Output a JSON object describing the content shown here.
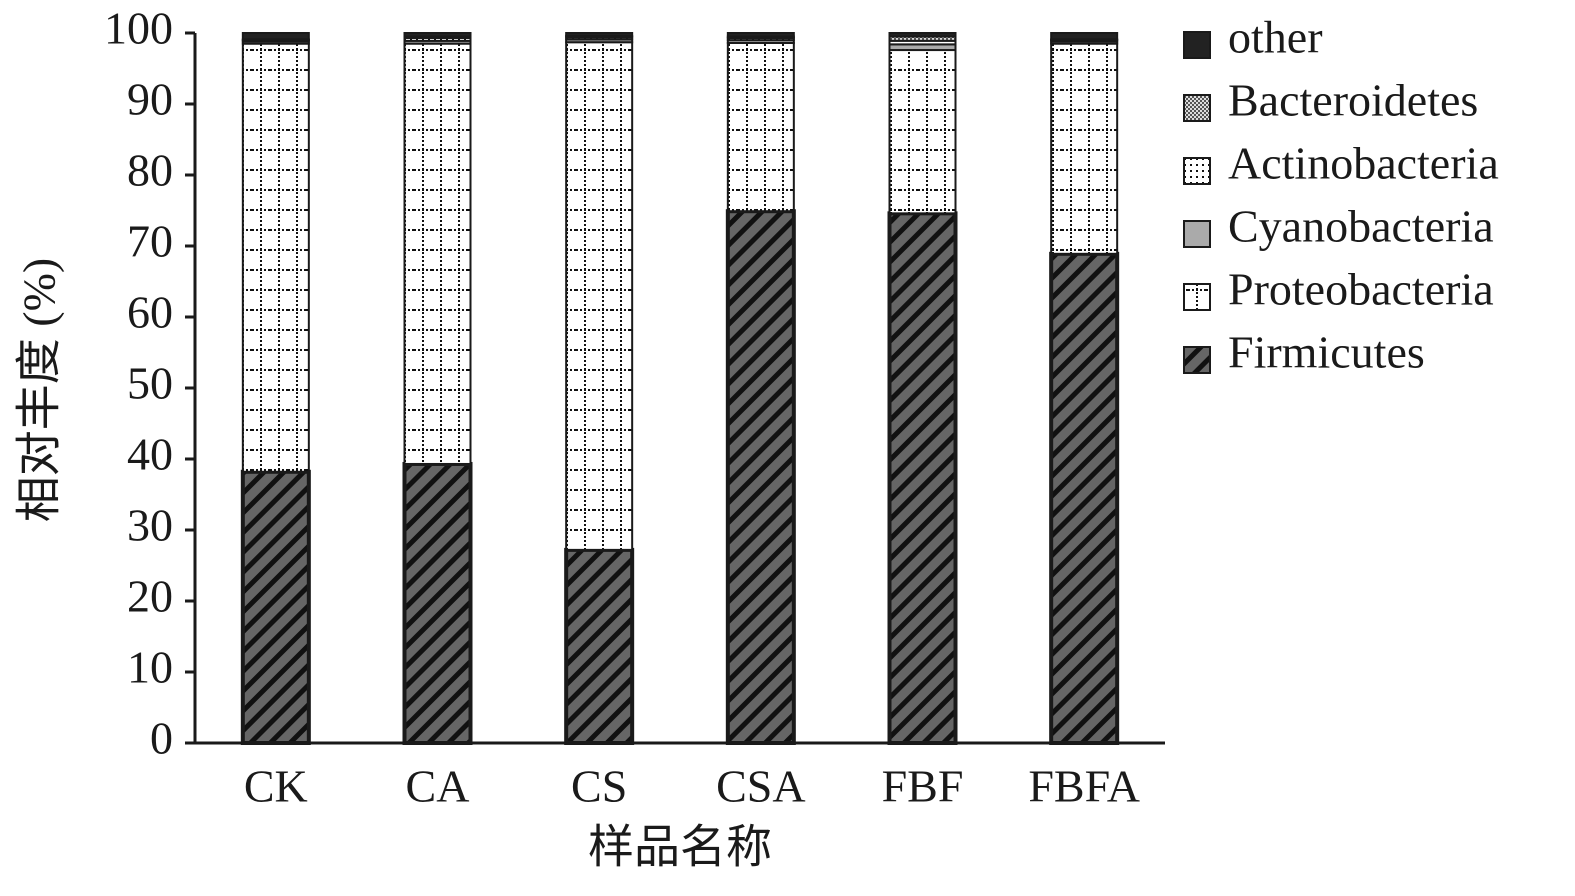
{
  "chart_data": {
    "type": "stacked-bar",
    "x_label": "样品名称",
    "y_label": "相对丰度 (%)",
    "categories": [
      "CK",
      "CA",
      "CS",
      "CSA",
      "FBF",
      "FBFA"
    ],
    "series": [
      {
        "name": "Firmicutes",
        "color": "#666666",
        "values": [
          38.2,
          39.3,
          27.2,
          74.9,
          74.6,
          68.9
        ]
      },
      {
        "name": "Proteobacteria",
        "color": "#ffffff",
        "values": [
          60.3,
          59.2,
          71.5,
          23.7,
          23.0,
          29.6
        ]
      },
      {
        "name": "Cyanobacteria",
        "color": "#aaaaaa",
        "values": [
          0.3,
          0.4,
          0.4,
          0.4,
          0.8,
          0.3
        ]
      },
      {
        "name": "Actinobacteria",
        "color": "#ffffff",
        "values": [
          0.2,
          0.4,
          0.3,
          0.3,
          0.5,
          0.2
        ]
      },
      {
        "name": "Bacteroidetes",
        "color": "#dddddd",
        "values": [
          0.1,
          0.2,
          0.2,
          0.2,
          0.6,
          0.1
        ]
      },
      {
        "name": "other",
        "color": "#222222",
        "values": [
          0.9,
          0.5,
          0.4,
          0.5,
          0.5,
          0.9
        ]
      }
    ],
    "ylim": [
      0,
      100
    ],
    "yticks": [
      0,
      10,
      20,
      30,
      40,
      50,
      60,
      70,
      80,
      90,
      100
    ],
    "grid": false
  }
}
